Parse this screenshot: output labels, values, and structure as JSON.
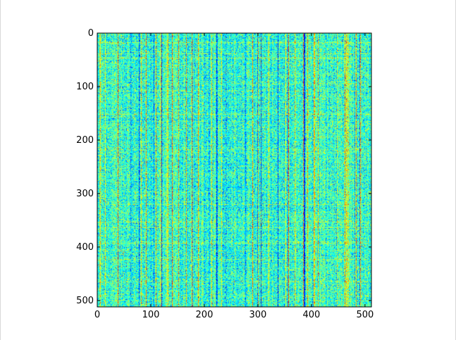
{
  "chart_data": {
    "type": "heatmap",
    "title": "",
    "xlabel": "",
    "ylabel": "",
    "xlim": [
      0,
      512
    ],
    "ylim": [
      512,
      0
    ],
    "rows": 512,
    "cols": 512,
    "x_ticks": [
      0,
      100,
      200,
      300,
      400,
      500
    ],
    "y_ticks": [
      0,
      100,
      200,
      300,
      400,
      500
    ],
    "x_tick_labels": [
      "0",
      "100",
      "200",
      "300",
      "400",
      "500"
    ],
    "y_tick_labels": [
      "0",
      "100",
      "200",
      "300",
      "400",
      "500"
    ],
    "colormap": "jet",
    "colormap_stops": [
      "#00007f",
      "#0000ff",
      "#007fff",
      "#00ffff",
      "#7fff7f",
      "#ffff00",
      "#ff7f00",
      "#ff0000",
      "#7f0000"
    ],
    "value_range": [
      0,
      1
    ],
    "dominant_color": "#3fc8a8",
    "pattern": "dense noisy matrix with vertical banding",
    "grid": false,
    "legend": "none",
    "colorbar": false
  }
}
